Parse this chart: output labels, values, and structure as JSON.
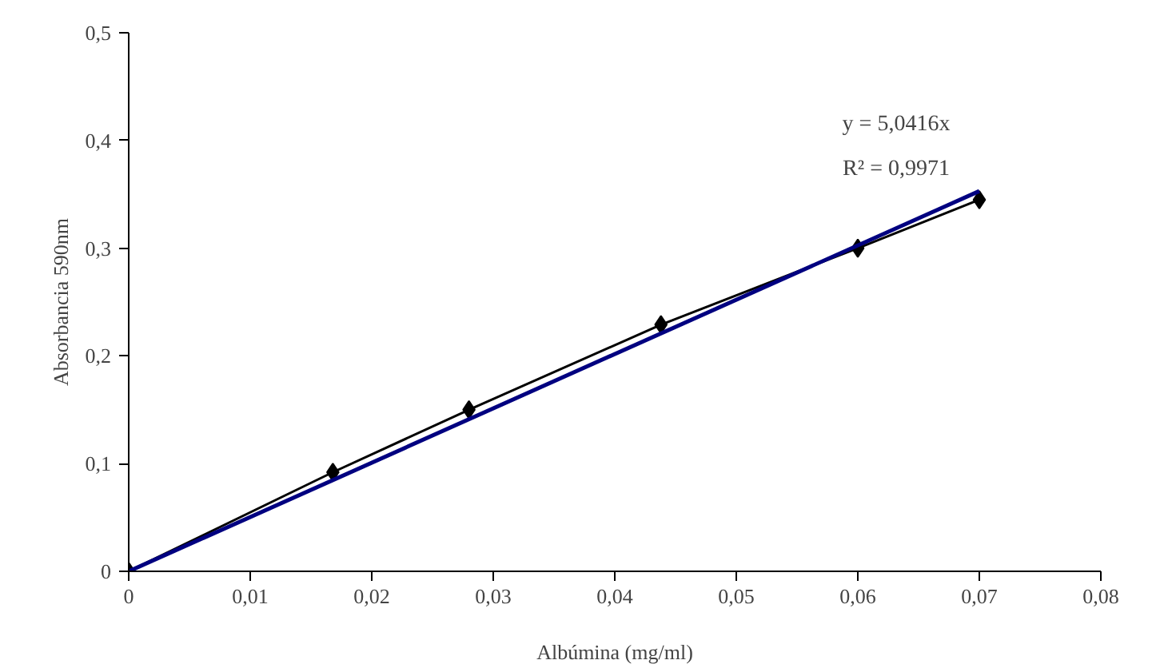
{
  "chart_data": {
    "type": "line",
    "xlabel": "Albúmina (mg/ml)",
    "ylabel": "Absorbancia 590nm",
    "x": [
      0,
      0.0168,
      0.028,
      0.0438,
      0.06,
      0.07
    ],
    "series": [
      {
        "color": "#000000",
        "values": [
          0,
          0.092,
          0.15,
          0.229,
          0.3,
          0.345
        ],
        "marker": "diamond"
      },
      {
        "type": "line",
        "color": "#000080",
        "x": [
          0,
          0.07
        ],
        "values": [
          0,
          0.353
        ],
        "marker": "none"
      }
    ],
    "annotations": [
      "y = 5,0416x",
      "R² = 0,9971"
    ],
    "xlim": [
      0,
      0.08
    ],
    "ylim": [
      0,
      0.5
    ],
    "xticks": [
      0,
      {
        "value": 0.01,
        "label": "0,01"
      },
      {
        "value": 0.02,
        "label": "0,02"
      },
      {
        "value": 0.03,
        "label": "0,03"
      },
      {
        "value": 0.04,
        "label": "0,04"
      },
      {
        "value": 0.05,
        "label": "0,05"
      },
      {
        "value": 0.06,
        "label": "0,06"
      },
      {
        "value": 0.07,
        "label": "0,07"
      },
      {
        "value": 0.08,
        "label": "0,08"
      }
    ],
    "yticks": [
      0,
      {
        "value": 0.1,
        "label": "0,1"
      },
      {
        "value": 0.2,
        "label": "0,2"
      },
      {
        "value": 0.3,
        "label": "0,3"
      },
      {
        "value": 0.4,
        "label": "0,4"
      },
      {
        "value": 0.5,
        "label": "0,5"
      }
    ],
    "grid": false
  }
}
